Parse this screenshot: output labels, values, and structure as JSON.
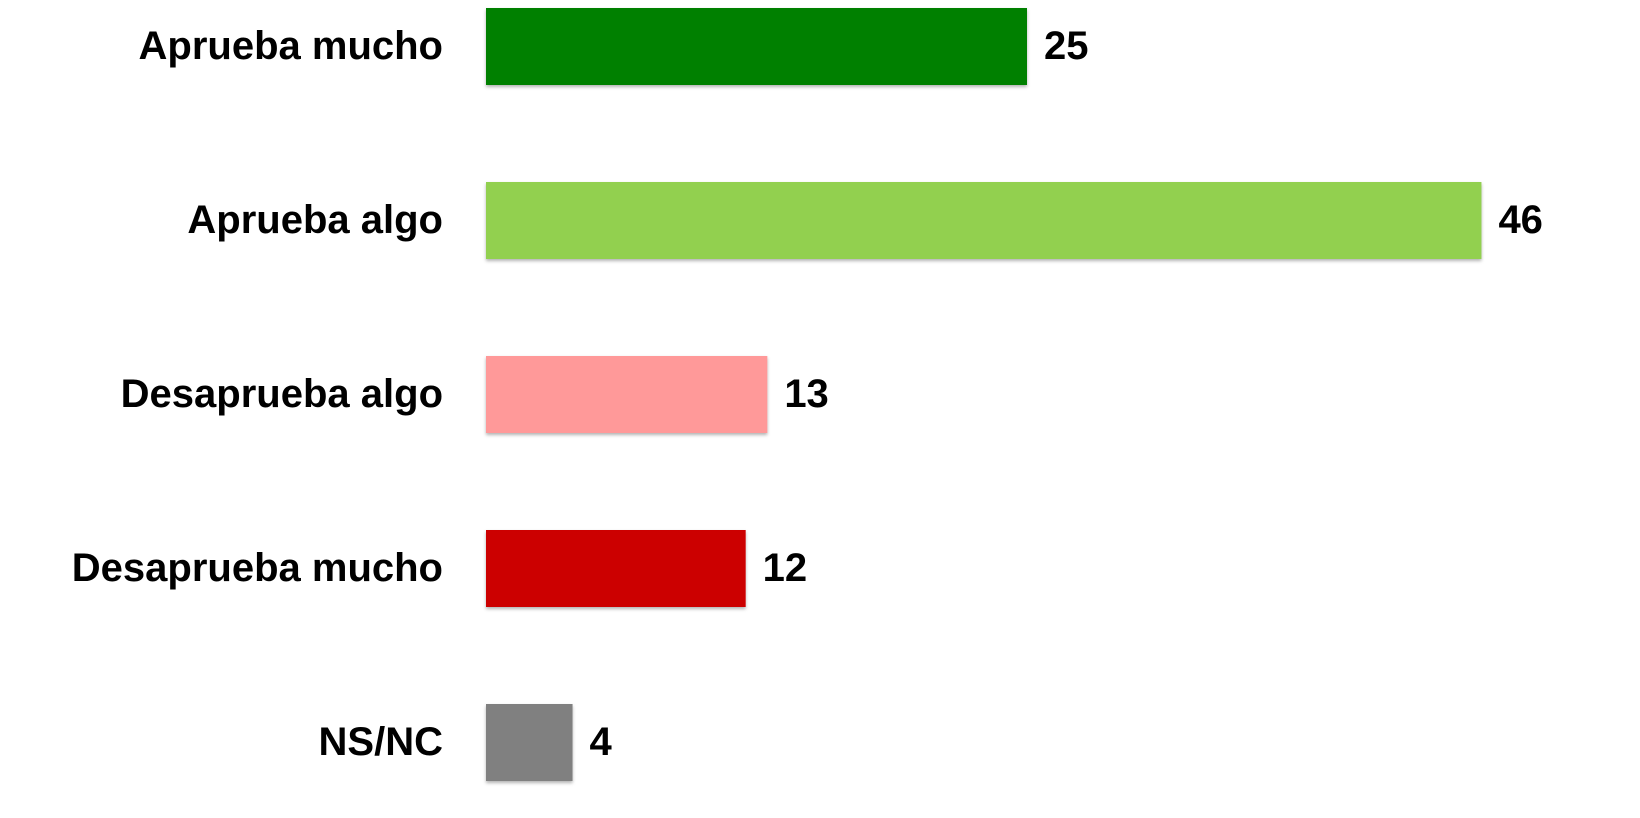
{
  "chart_data": {
    "type": "bar",
    "orientation": "horizontal",
    "categories": [
      "Aprueba mucho",
      "Aprueba algo",
      "Desaprueba algo",
      "Desaprueba mucho",
      "NS/NC"
    ],
    "values": [
      25,
      46,
      13,
      12,
      4
    ],
    "colors": [
      "#008000",
      "#92d050",
      "#ff9999",
      "#cc0000",
      "#808080"
    ],
    "xlim": [
      0,
      50
    ]
  }
}
